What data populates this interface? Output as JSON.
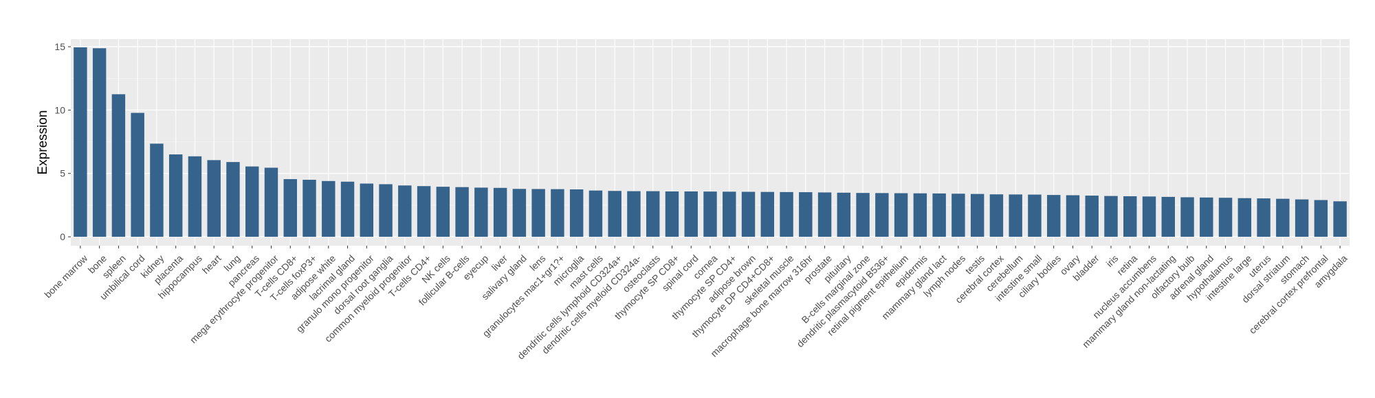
{
  "chart_data": {
    "type": "bar",
    "title": "",
    "xlabel": "",
    "ylabel": "Expression",
    "ylim": [
      -0.7,
      15.6
    ],
    "yticks": [
      0,
      5,
      10,
      15
    ],
    "grid": true,
    "legend": "none",
    "colors": {
      "bar": "#35638c",
      "panel": "#ebebeb",
      "grid_major": "#ffffff",
      "grid_minor": "#f5f5f5",
      "tick_text": "#4d4d4d"
    },
    "categories": [
      "bone marrow",
      "bone",
      "spleen",
      "umbilical cord",
      "kidney",
      "placenta",
      "hippocampus",
      "heart",
      "lung",
      "pancreas",
      "mega erythrocyte progenitor",
      "T-cells CD8+",
      "T-cells foxP3+",
      "adipose white",
      "lacrimal gland",
      "granulo mono progenitor",
      "dorsal root ganglia",
      "common myeloid progenitor",
      "T-cells CD4+",
      "NK cells",
      "follicular B-cells",
      "eyecup",
      "liver",
      "salivary gland",
      "lens",
      "granulocytes mac1+gr1?+",
      "microglia",
      "mast cells",
      "dendritic cells lymphoid CD324a+",
      "dendritic cells myeloid CD324a-",
      "osteoclasts",
      "thymocyte SP CD8+",
      "spinal cord",
      "cornea",
      "thymocyte SP CD4+",
      "adipose brown",
      "thymocyte DP CD4+CD8+",
      "skeletal muscle",
      "macrophage bone marrow 316hr",
      "prostate",
      "pituitary",
      "B-cells marginal zone",
      "dendritic plasmacytoid B536+",
      "retinal pigment epithelium",
      "epidermis",
      "mammary gland  lact",
      "lymph nodes",
      "testis",
      "cerebral cortex",
      "cerebellum",
      "intestine small",
      "ciliary bodies",
      "ovary",
      "bladder",
      "iris",
      "retina",
      "nucleus accumbens",
      "mammary gland non-lactating",
      "olfactory bulb",
      "adrenal gland",
      "hypothalamus",
      "intestine large",
      "uterus",
      "dorsal striatum",
      "stomach",
      "cerebral cortex prefrontal",
      "amygdala"
    ],
    "values": [
      14.95,
      14.88,
      11.25,
      9.78,
      7.35,
      6.5,
      6.35,
      6.05,
      5.9,
      5.55,
      5.45,
      4.55,
      4.5,
      4.4,
      4.35,
      4.2,
      4.15,
      4.05,
      4.0,
      3.95,
      3.92,
      3.88,
      3.86,
      3.78,
      3.77,
      3.76,
      3.74,
      3.65,
      3.62,
      3.6,
      3.6,
      3.58,
      3.58,
      3.57,
      3.56,
      3.55,
      3.54,
      3.53,
      3.52,
      3.5,
      3.48,
      3.46,
      3.45,
      3.44,
      3.43,
      3.42,
      3.4,
      3.38,
      3.35,
      3.34,
      3.33,
      3.3,
      3.28,
      3.25,
      3.22,
      3.2,
      3.18,
      3.15,
      3.12,
      3.1,
      3.08,
      3.05,
      3.03,
      3.0,
      2.95,
      2.9,
      2.8
    ]
  }
}
